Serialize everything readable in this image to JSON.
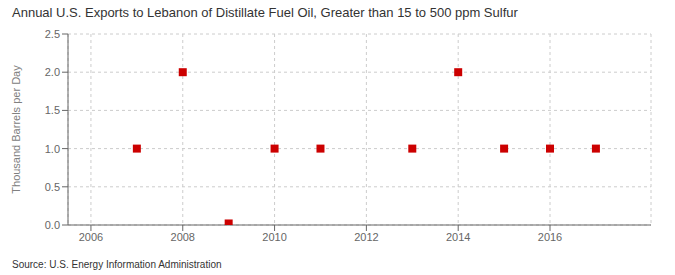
{
  "chart_data": {
    "type": "scatter",
    "title": "Annual U.S. Exports to Lebanon of Distillate Fuel Oil, Greater than 15 to 500 ppm Sulfur",
    "ylabel": "Thousand Barrels per Day",
    "annotations": [
      "Source: U.S. Energy Information Administration"
    ],
    "x": [
      2007,
      2008,
      2009,
      2010,
      2011,
      2013,
      2014,
      2015,
      2016,
      2017
    ],
    "values": [
      1.0,
      2.0,
      0.02,
      1.0,
      1.0,
      1.0,
      2.0,
      1.0,
      1.0,
      1.0
    ],
    "color": "#cc0000",
    "marker": "square",
    "xlim": [
      2005.5,
      2018.2
    ],
    "xticks": [
      2006,
      2008,
      2010,
      2012,
      2014,
      2016
    ],
    "ylim": [
      0.0,
      2.5
    ],
    "yticks": [
      {
        "value": 0,
        "label": "0.0"
      },
      0.5,
      {
        "value": 1,
        "label": "1.0"
      },
      1.5,
      {
        "value": 2,
        "label": "2.0"
      },
      2.5
    ],
    "grid": true
  }
}
